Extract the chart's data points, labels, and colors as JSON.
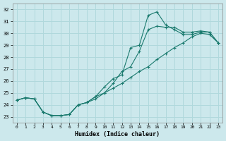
{
  "xlabel": "Humidex (Indice chaleur)",
  "xlim": [
    -0.5,
    23.5
  ],
  "ylim": [
    22.5,
    32.5
  ],
  "xticks": [
    0,
    1,
    2,
    3,
    4,
    5,
    6,
    7,
    8,
    9,
    10,
    11,
    12,
    13,
    14,
    15,
    16,
    17,
    18,
    19,
    20,
    21,
    22,
    23
  ],
  "yticks": [
    23,
    24,
    25,
    26,
    27,
    28,
    29,
    30,
    31,
    32
  ],
  "bg_color": "#cce8ec",
  "line_color": "#1a7a6e",
  "grid_color": "#b0d8dc",
  "curve1_x": [
    0,
    1,
    2,
    3,
    4,
    5,
    6,
    7,
    8,
    9,
    10,
    11,
    12,
    13,
    14,
    15,
    16,
    17,
    18,
    19,
    20,
    21,
    22,
    23
  ],
  "curve1_y": [
    24.4,
    24.6,
    24.5,
    23.4,
    23.1,
    23.1,
    23.2,
    24.0,
    24.2,
    24.7,
    25.5,
    26.2,
    26.5,
    28.8,
    29.0,
    31.5,
    31.8,
    30.7,
    30.3,
    29.9,
    29.9,
    30.1,
    30.1,
    29.2
  ],
  "curve2_x": [
    0,
    1,
    2,
    3,
    4,
    5,
    6,
    7,
    8,
    9,
    10,
    11,
    12,
    13,
    14,
    15,
    16,
    17,
    18,
    19,
    20,
    21,
    22,
    23
  ],
  "curve2_y": [
    24.4,
    24.6,
    24.5,
    23.4,
    23.1,
    23.1,
    23.2,
    24.0,
    24.2,
    24.7,
    25.0,
    25.8,
    26.8,
    27.2,
    28.5,
    30.3,
    30.6,
    30.5,
    30.5,
    30.1,
    30.1,
    30.2,
    30.1,
    29.2
  ],
  "curve3_x": [
    0,
    1,
    2,
    3,
    4,
    5,
    6,
    7,
    8,
    9,
    10,
    11,
    12,
    13,
    14,
    15,
    16,
    17,
    18,
    19,
    20,
    21,
    22,
    23
  ],
  "curve3_y": [
    24.4,
    24.6,
    24.5,
    23.4,
    23.1,
    23.1,
    23.2,
    24.0,
    24.2,
    24.5,
    25.0,
    25.4,
    25.8,
    26.3,
    26.8,
    27.2,
    27.8,
    28.3,
    28.8,
    29.2,
    29.7,
    30.0,
    29.9,
    29.2
  ]
}
